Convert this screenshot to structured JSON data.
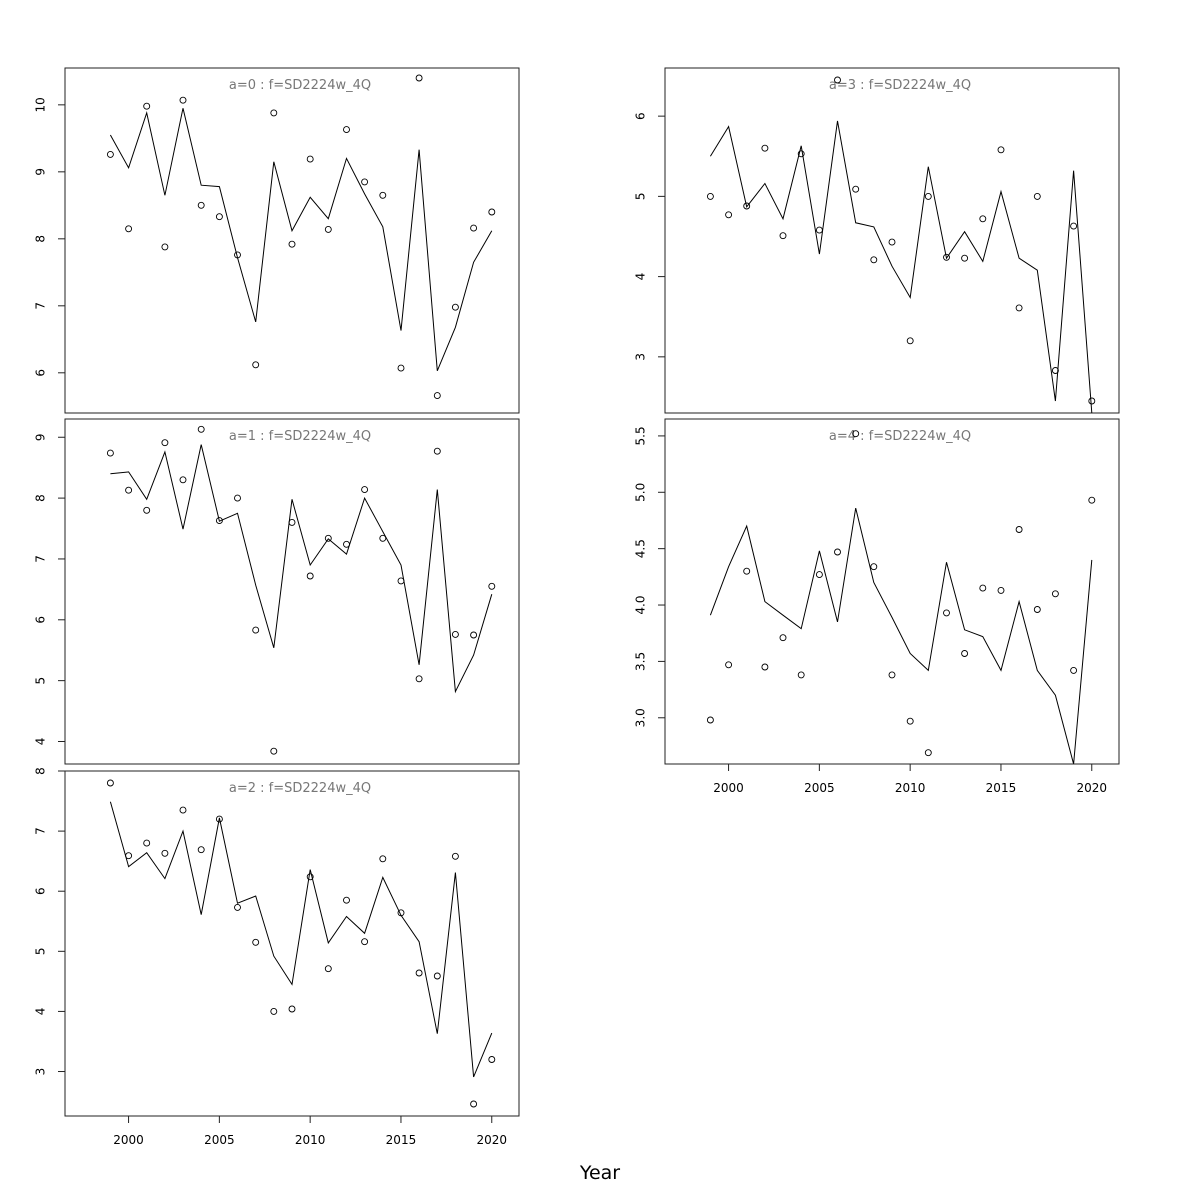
{
  "chart_data": {
    "type": "line",
    "xlabel": "Year",
    "x": [
      1999,
      2000,
      2001,
      2002,
      2003,
      2004,
      2005,
      2006,
      2007,
      2008,
      2009,
      2010,
      2011,
      2012,
      2013,
      2014,
      2015,
      2016,
      2017,
      2018,
      2019,
      2020
    ],
    "x_ticks": [
      2000,
      2005,
      2010,
      2015,
      2020
    ],
    "xlim": [
      1996.5,
      2021.5
    ],
    "panels": [
      {
        "title": "a=0  :  f=SD2224w_4Q",
        "ylim": [
          5.4,
          10.55
        ],
        "y_ticks": [
          6,
          7,
          8,
          9,
          10
        ],
        "fitted": [
          9.55,
          9.06,
          9.88,
          8.65,
          9.95,
          8.8,
          8.78,
          7.72,
          6.76,
          9.15,
          8.12,
          8.62,
          8.3,
          9.2,
          8.67,
          8.18,
          6.63,
          9.33,
          6.03,
          6.68,
          7.65,
          8.12
        ],
        "observed": [
          9.26,
          8.15,
          9.98,
          7.88,
          10.07,
          8.5,
          8.33,
          7.76,
          6.12,
          9.88,
          7.92,
          9.19,
          8.14,
          9.63,
          8.85,
          8.65,
          6.07,
          10.4,
          5.66,
          6.98,
          8.16,
          8.4
        ]
      },
      {
        "title": "a=3  :  f=SD2224w_4Q",
        "ylim": [
          2.3,
          6.6
        ],
        "y_ticks": [
          3,
          4,
          5,
          6
        ],
        "fitted": [
          5.5,
          5.87,
          4.87,
          5.16,
          4.72,
          5.63,
          4.28,
          5.94,
          4.67,
          4.62,
          4.13,
          3.74,
          5.37,
          4.23,
          4.56,
          4.19,
          5.06,
          4.23,
          4.08,
          2.45,
          5.32,
          2.3
        ],
        "observed": [
          5.0,
          4.77,
          4.88,
          5.6,
          4.51,
          5.53,
          4.58,
          6.45,
          5.09,
          4.21,
          4.43,
          3.2,
          5.0,
          4.24,
          4.23,
          4.72,
          5.58,
          3.61,
          5.0,
          2.83,
          4.63,
          2.45
        ]
      },
      {
        "title": "a=1  :  f=SD2224w_4Q",
        "ylim": [
          3.63,
          9.3
        ],
        "y_ticks": [
          4,
          5,
          6,
          7,
          8,
          9
        ],
        "fitted": [
          8.4,
          8.43,
          7.98,
          8.76,
          7.49,
          8.88,
          7.62,
          7.75,
          6.57,
          5.54,
          7.98,
          6.9,
          7.33,
          7.08,
          8.0,
          7.45,
          6.9,
          5.26,
          8.14,
          4.82,
          5.42,
          6.42
        ],
        "observed": [
          8.74,
          8.13,
          7.8,
          8.91,
          8.3,
          9.13,
          7.63,
          8.0,
          5.83,
          3.84,
          7.6,
          6.72,
          7.34,
          7.24,
          8.14,
          7.34,
          6.64,
          5.03,
          8.77,
          5.76,
          5.75,
          6.55
        ]
      },
      {
        "title": "a=4  :  f=SD2224w_4Q",
        "ylim": [
          2.59,
          5.65
        ],
        "y_ticks": [
          3.0,
          3.5,
          4.0,
          4.5,
          5.0,
          5.5
        ],
        "y_tick_labels": [
          "3.0",
          "3.5",
          "4.0",
          "4.5",
          "5.0",
          "5.5"
        ],
        "fitted": [
          3.91,
          4.34,
          4.7,
          4.03,
          3.91,
          3.79,
          4.48,
          3.85,
          4.86,
          4.2,
          3.89,
          3.57,
          3.42,
          4.38,
          3.78,
          3.72,
          3.42,
          4.03,
          3.42,
          3.2,
          2.44,
          4.4
        ],
        "observed": [
          2.98,
          3.47,
          4.3,
          3.45,
          3.71,
          3.38,
          4.27,
          4.47,
          5.52,
          4.34,
          3.38,
          2.97,
          2.69,
          3.93,
          3.57,
          4.15,
          4.13,
          4.67,
          3.96,
          4.1,
          3.42,
          4.93
        ]
      },
      {
        "title": "a=2  :  f=SD2224w_4Q",
        "ylim": [
          2.26,
          8.0
        ],
        "y_ticks": [
          3,
          4,
          5,
          6,
          7,
          8
        ],
        "fitted": [
          7.49,
          6.41,
          6.64,
          6.21,
          7.0,
          5.61,
          7.22,
          5.8,
          5.92,
          4.92,
          4.45,
          6.36,
          5.14,
          5.58,
          5.3,
          6.23,
          5.6,
          5.16,
          3.63,
          6.31,
          2.91,
          3.64
        ],
        "observed": [
          7.8,
          6.59,
          6.8,
          6.63,
          7.35,
          6.69,
          7.2,
          5.73,
          5.15,
          4.0,
          4.04,
          6.24,
          4.71,
          5.85,
          5.16,
          6.54,
          5.64,
          4.64,
          4.59,
          6.58,
          2.46,
          3.2
        ]
      }
    ]
  }
}
